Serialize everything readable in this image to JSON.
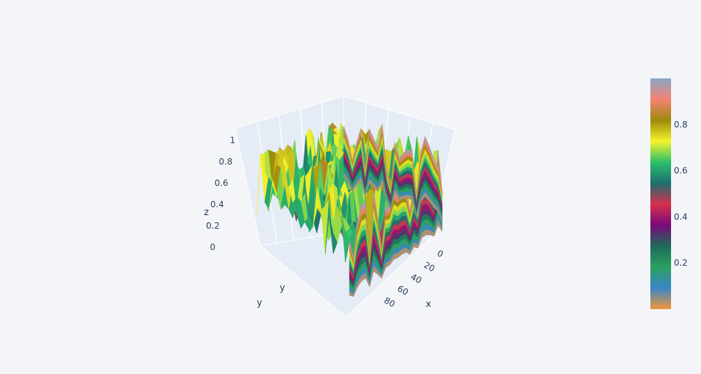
{
  "chart_data": {
    "type": "surface3d",
    "title": "",
    "axes": {
      "x": {
        "label": "x",
        "range": [
          0,
          99
        ],
        "ticks": [
          0,
          20,
          40,
          60,
          80
        ]
      },
      "y": {
        "label": "y",
        "range": [
          0,
          99
        ],
        "ticks": []
      },
      "z": {
        "label": "z",
        "range": [
          0,
          1
        ],
        "ticks": [
          0,
          0.2,
          0.4,
          0.6,
          0.8,
          1
        ]
      }
    },
    "grid": true,
    "z_values_description": "random noise surface, values in [0,1]",
    "grid_size": [
      100,
      100
    ],
    "colorbar": {
      "ticks": [
        0.2,
        0.4,
        0.6,
        0.8
      ],
      "range": [
        0,
        1
      ],
      "colorscale": [
        "#f2963a",
        "#3a86c8",
        "#2ba05f",
        "#1e6b5a",
        "#7a0a7a",
        "#d6304f",
        "#1d6e6e",
        "#2bbf6b",
        "#f4f42b",
        "#9e8a0c",
        "#f58273",
        "#88a8c8"
      ]
    }
  }
}
